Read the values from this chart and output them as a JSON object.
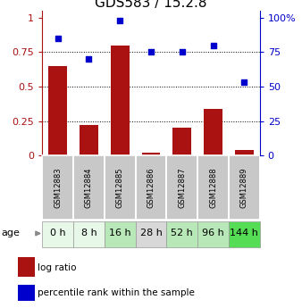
{
  "title": "GDS583 / 15.2.8",
  "samples": [
    "GSM12883",
    "GSM12884",
    "GSM12885",
    "GSM12886",
    "GSM12887",
    "GSM12888",
    "GSM12889"
  ],
  "ages": [
    "0 h",
    "8 h",
    "16 h",
    "28 h",
    "52 h",
    "96 h",
    "144 h"
  ],
  "age_colors": [
    "#e8f8e8",
    "#e8f8e8",
    "#b8e8b8",
    "#d8d8d8",
    "#b8e8b8",
    "#b8e8b8",
    "#55dd55"
  ],
  "log_ratio": [
    0.65,
    0.22,
    0.8,
    0.02,
    0.2,
    0.34,
    0.04
  ],
  "percentile_rank": [
    0.85,
    0.7,
    0.98,
    0.75,
    0.75,
    0.8,
    0.53
  ],
  "bar_color": "#aa1111",
  "dot_color": "#0000cc",
  "yticks_left": [
    0,
    0.25,
    0.5,
    0.75,
    1.0
  ],
  "ytick_labels_left": [
    "0",
    "0.25",
    "0.5",
    "0.75",
    "1"
  ],
  "yticks_right": [
    0,
    25,
    50,
    75,
    100
  ],
  "ytick_labels_right": [
    "0",
    "25",
    "50",
    "75",
    "100%"
  ],
  "hlines": [
    0.25,
    0.5,
    0.75
  ],
  "ylim": [
    0,
    1.05
  ],
  "legend_log_ratio": "log ratio",
  "legend_percentile": "percentile rank within the sample",
  "age_label": "age",
  "sample_box_color": "#c8c8c8",
  "title_fontsize": 11,
  "tick_fontsize": 8,
  "age_fontsize": 8,
  "sample_fontsize": 6,
  "legend_fontsize": 7.5
}
